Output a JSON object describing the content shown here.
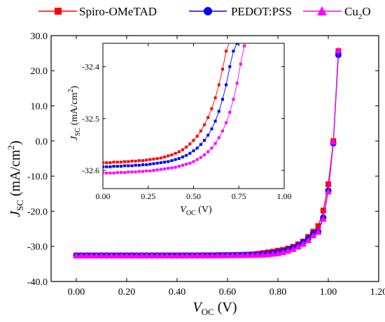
{
  "chart_data": [
    {
      "type": "line",
      "title": "",
      "xlabel": {
        "main": "V",
        "sub": "OC",
        "unit": " (V)"
      },
      "ylabel": {
        "main": "J",
        "sub": "SC",
        "unit": " (mA/cm",
        "sup": "2",
        "close": ")"
      },
      "xlim": [
        -0.1,
        1.2
      ],
      "ylim": [
        -40,
        30
      ],
      "xticks": [
        0,
        0.2,
        0.4,
        0.6,
        0.8,
        1.0,
        1.2
      ],
      "xtick_labels": [
        "0.00",
        "0.20",
        "0.40",
        "0.60",
        "0.80",
        "1.00",
        "1.20"
      ],
      "yticks": [
        -40,
        -30,
        -20,
        -10,
        0,
        10,
        20,
        30
      ],
      "ytick_labels": [
        "-40.0",
        "-30.0",
        "-20.0",
        "-10.0",
        "0.0",
        "10.0",
        "20.0",
        "30.0"
      ],
      "grid": false,
      "legend_position": "top",
      "series": [
        {
          "name": "Spiro-OMeTAD",
          "color": "#ff0000",
          "marker": "square",
          "x": [
            0,
            0.02,
            0.04,
            0.06,
            0.08,
            0.1,
            0.12,
            0.14,
            0.16,
            0.18,
            0.2,
            0.22,
            0.24,
            0.26,
            0.28,
            0.3,
            0.32,
            0.34,
            0.36,
            0.38,
            0.4,
            0.42,
            0.44,
            0.46,
            0.48,
            0.5,
            0.52,
            0.54,
            0.56,
            0.58,
            0.6,
            0.62,
            0.64,
            0.66,
            0.68,
            0.7,
            0.72,
            0.74,
            0.76,
            0.78,
            0.8,
            0.82,
            0.84,
            0.86,
            0.88,
            0.9,
            0.92,
            0.94,
            0.96,
            0.98,
            1.0,
            1.02,
            1.04
          ],
          "y": [
            -32.59,
            -32.59,
            -32.59,
            -32.59,
            -32.59,
            -32.59,
            -32.59,
            -32.59,
            -32.59,
            -32.59,
            -32.59,
            -32.59,
            -32.59,
            -32.59,
            -32.58,
            -32.58,
            -32.58,
            -32.58,
            -32.58,
            -32.58,
            -32.58,
            -32.57,
            -32.57,
            -32.57,
            -32.56,
            -32.55,
            -32.54,
            -32.53,
            -32.51,
            -32.49,
            -32.47,
            -32.45,
            -32.42,
            -32.38,
            -32.33,
            -32.25,
            -32.1,
            -31.9,
            -31.7,
            -31.5,
            -31.2,
            -31.0,
            -30.6,
            -30.1,
            -29.4,
            -28.6,
            -27.3,
            -25.8,
            -24.2,
            -19.8,
            -12.3,
            0.0,
            25.6
          ]
        },
        {
          "name": "PEDOT:PSS",
          "color": "#0000ff",
          "marker": "circle",
          "x": [
            0,
            0.02,
            0.04,
            0.06,
            0.08,
            0.1,
            0.12,
            0.14,
            0.16,
            0.18,
            0.2,
            0.22,
            0.24,
            0.26,
            0.28,
            0.3,
            0.32,
            0.34,
            0.36,
            0.38,
            0.4,
            0.42,
            0.44,
            0.46,
            0.48,
            0.5,
            0.52,
            0.54,
            0.56,
            0.58,
            0.6,
            0.62,
            0.64,
            0.66,
            0.68,
            0.7,
            0.72,
            0.74,
            0.76,
            0.78,
            0.8,
            0.82,
            0.84,
            0.86,
            0.88,
            0.9,
            0.92,
            0.94,
            0.96,
            0.98,
            1.0,
            1.02,
            1.04
          ],
          "y": [
            -32.595,
            -32.595,
            -32.595,
            -32.595,
            -32.595,
            -32.595,
            -32.595,
            -32.595,
            -32.595,
            -32.595,
            -32.595,
            -32.595,
            -32.595,
            -32.595,
            -32.59,
            -32.59,
            -32.59,
            -32.59,
            -32.59,
            -32.59,
            -32.59,
            -32.585,
            -32.585,
            -32.58,
            -32.58,
            -32.575,
            -32.57,
            -32.56,
            -32.55,
            -32.54,
            -32.53,
            -32.51,
            -32.49,
            -32.47,
            -32.44,
            -32.41,
            -32.36,
            -32.28,
            -32.1,
            -31.9,
            -31.7,
            -31.4,
            -31.0,
            -30.5,
            -29.8,
            -28.9,
            -27.8,
            -26.4,
            -25.8,
            -21.8,
            -14.1,
            -0.7,
            24.5
          ]
        },
        {
          "name": "Cu₂O",
          "name_main": "Cu",
          "name_sub": "2",
          "name_tail": "O",
          "color": "#ff00ff",
          "marker": "triangle",
          "x": [
            0,
            0.02,
            0.04,
            0.06,
            0.08,
            0.1,
            0.12,
            0.14,
            0.16,
            0.18,
            0.2,
            0.22,
            0.24,
            0.26,
            0.28,
            0.3,
            0.32,
            0.34,
            0.36,
            0.38,
            0.4,
            0.42,
            0.44,
            0.46,
            0.48,
            0.5,
            0.52,
            0.54,
            0.56,
            0.58,
            0.6,
            0.62,
            0.64,
            0.66,
            0.68,
            0.7,
            0.72,
            0.74,
            0.76,
            0.78,
            0.8,
            0.82,
            0.84,
            0.86,
            0.88,
            0.9,
            0.92,
            0.94,
            0.96,
            0.98,
            1.0,
            1.02,
            1.04
          ],
          "y": [
            -32.605,
            -32.605,
            -32.605,
            -32.605,
            -32.605,
            -32.605,
            -32.605,
            -32.605,
            -32.605,
            -32.605,
            -32.605,
            -32.605,
            -32.605,
            -32.605,
            -32.6,
            -32.6,
            -32.6,
            -32.6,
            -32.6,
            -32.6,
            -32.6,
            -32.6,
            -32.6,
            -32.595,
            -32.595,
            -32.59,
            -32.59,
            -32.585,
            -32.58,
            -32.57,
            -32.56,
            -32.55,
            -32.535,
            -32.52,
            -32.5,
            -32.475,
            -32.44,
            -32.39,
            -32.3,
            -32.15,
            -32.0,
            -31.7,
            -31.3,
            -30.8,
            -30.1,
            -29.3,
            -28.3,
            -26.9,
            -25.9,
            -22.2,
            -14.4,
            -0.2,
            25.8
          ]
        }
      ]
    },
    {
      "type": "line",
      "title": "",
      "xlabel": {
        "main": "V",
        "sub": "OC",
        "unit": " (V)"
      },
      "ylabel": {
        "main": "J",
        "sub": "SC",
        "unit": " (mA/cm",
        "sup": "2",
        "close": ")"
      },
      "xlim": [
        0,
        1.0
      ],
      "ylim": [
        -32.635,
        -32.355
      ],
      "xticks": [
        0,
        0.25,
        0.5,
        0.75,
        1.0
      ],
      "xtick_labels": [
        "0.00",
        "0.25",
        "0.50",
        "0.75",
        "1.00"
      ],
      "yticks": [
        -32.6,
        -32.5,
        -32.4
      ],
      "ytick_labels": [
        "-32.6",
        "-32.5",
        "-32.4"
      ],
      "grid": false,
      "series": [
        {
          "name": "Spiro-OMeTAD",
          "color": "#ff0000",
          "marker": "square",
          "x": [
            0,
            0.02,
            0.04,
            0.06,
            0.08,
            0.1,
            0.12,
            0.14,
            0.16,
            0.18,
            0.2,
            0.22,
            0.24,
            0.26,
            0.28,
            0.3,
            0.32,
            0.34,
            0.36,
            0.38,
            0.4,
            0.42,
            0.44,
            0.46,
            0.48,
            0.5,
            0.52,
            0.54,
            0.56,
            0.58,
            0.6,
            0.62,
            0.64,
            0.66,
            0.68,
            0.7
          ],
          "y": [
            -32.585,
            -32.585,
            -32.585,
            -32.584,
            -32.584,
            -32.584,
            -32.583,
            -32.583,
            -32.582,
            -32.582,
            -32.581,
            -32.581,
            -32.58,
            -32.579,
            -32.578,
            -32.577,
            -32.576,
            -32.574,
            -32.572,
            -32.57,
            -32.567,
            -32.564,
            -32.56,
            -32.555,
            -32.549,
            -32.542,
            -32.534,
            -32.524,
            -32.512,
            -32.498,
            -32.481,
            -32.46,
            -32.435,
            -32.405,
            -32.37,
            -32.35
          ]
        },
        {
          "name": "PEDOT:PSS",
          "color": "#0000ff",
          "marker": "square",
          "x": [
            0,
            0.02,
            0.04,
            0.06,
            0.08,
            0.1,
            0.12,
            0.14,
            0.16,
            0.18,
            0.2,
            0.22,
            0.24,
            0.26,
            0.28,
            0.3,
            0.32,
            0.34,
            0.36,
            0.38,
            0.4,
            0.42,
            0.44,
            0.46,
            0.48,
            0.5,
            0.52,
            0.54,
            0.56,
            0.58,
            0.6,
            0.62,
            0.64,
            0.66,
            0.68,
            0.7,
            0.72,
            0.74,
            0.76
          ],
          "y": [
            -32.593,
            -32.593,
            -32.593,
            -32.592,
            -32.592,
            -32.592,
            -32.591,
            -32.591,
            -32.591,
            -32.59,
            -32.59,
            -32.589,
            -32.589,
            -32.588,
            -32.587,
            -32.586,
            -32.585,
            -32.584,
            -32.583,
            -32.581,
            -32.579,
            -32.577,
            -32.574,
            -32.571,
            -32.567,
            -32.562,
            -32.557,
            -32.55,
            -32.542,
            -32.532,
            -32.52,
            -32.505,
            -32.486,
            -32.463,
            -32.435,
            -32.4,
            -32.37,
            -32.355,
            -32.35
          ]
        },
        {
          "name": "Cu₂O",
          "color": "#ff00ff",
          "marker": "square",
          "x": [
            0,
            0.02,
            0.04,
            0.06,
            0.08,
            0.1,
            0.12,
            0.14,
            0.16,
            0.18,
            0.2,
            0.22,
            0.24,
            0.26,
            0.28,
            0.3,
            0.32,
            0.34,
            0.36,
            0.38,
            0.4,
            0.42,
            0.44,
            0.46,
            0.48,
            0.5,
            0.52,
            0.54,
            0.56,
            0.58,
            0.6,
            0.62,
            0.64,
            0.66,
            0.68,
            0.7,
            0.72,
            0.74,
            0.76,
            0.78,
            0.8
          ],
          "y": [
            -32.605,
            -32.605,
            -32.605,
            -32.605,
            -32.604,
            -32.604,
            -32.604,
            -32.603,
            -32.603,
            -32.603,
            -32.602,
            -32.602,
            -32.601,
            -32.601,
            -32.6,
            -32.599,
            -32.598,
            -32.597,
            -32.596,
            -32.595,
            -32.594,
            -32.592,
            -32.59,
            -32.588,
            -32.586,
            -32.583,
            -32.579,
            -32.575,
            -32.57,
            -32.564,
            -32.557,
            -32.548,
            -32.537,
            -32.524,
            -32.508,
            -32.488,
            -32.463,
            -32.432,
            -32.395,
            -32.36,
            -32.35
          ]
        }
      ]
    }
  ]
}
